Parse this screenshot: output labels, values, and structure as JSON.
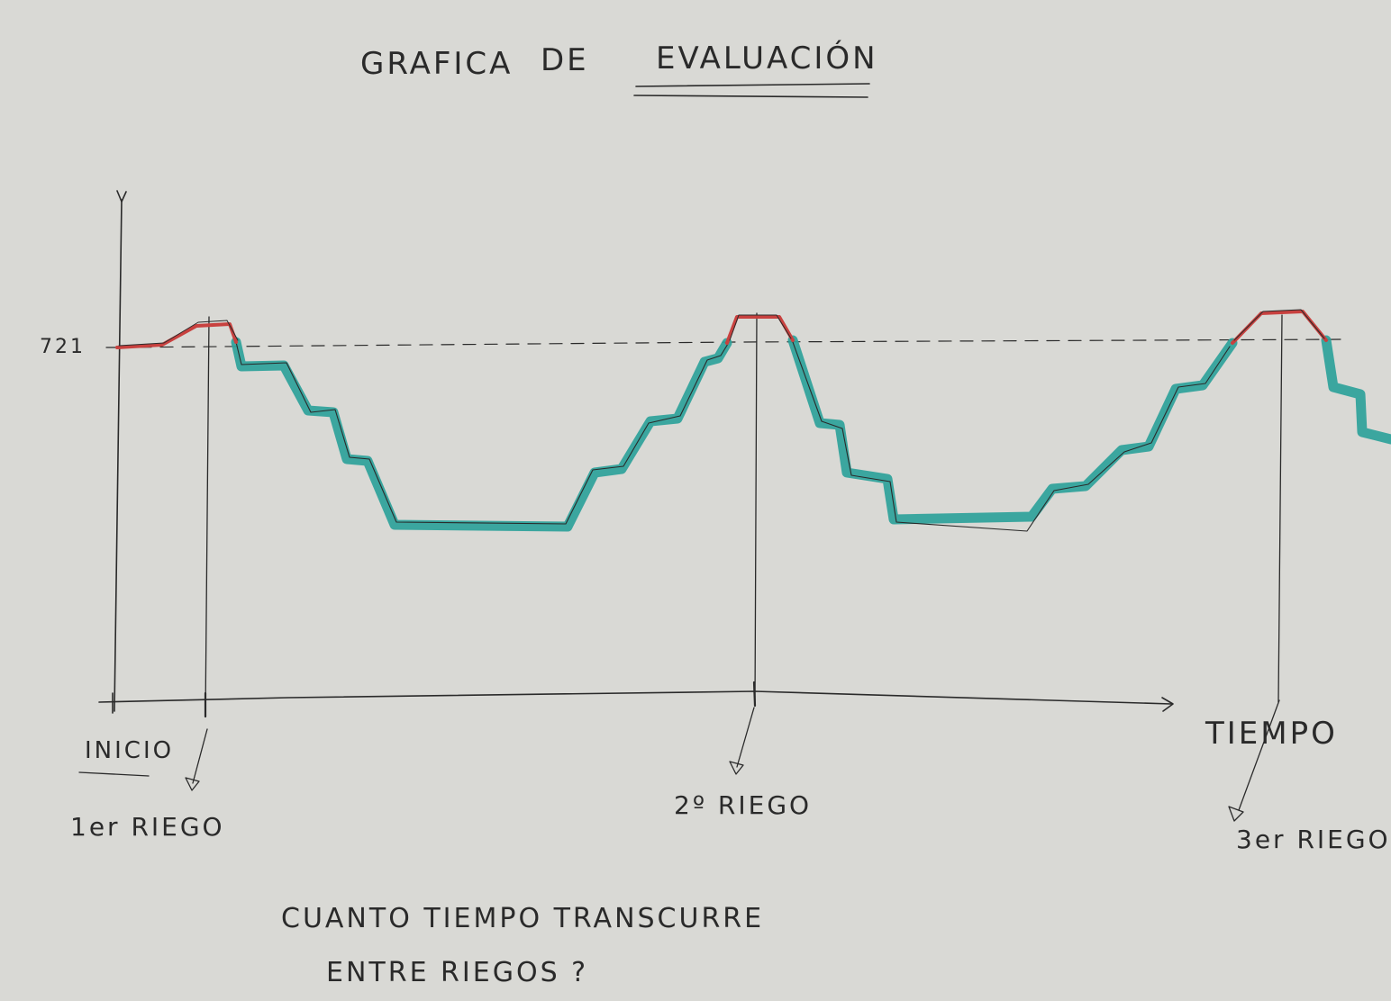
{
  "title": "GRAFICA DE EVALUACIÓN",
  "title_part1": "GRAFICA",
  "title_part2": "DE",
  "title_part3": "EVALUACIÓN",
  "y_tick_label": "721",
  "x_axis_label": "TIEMPO",
  "start_label": "INICIO",
  "events": [
    {
      "label": "1er RIEGO"
    },
    {
      "label": "2º RIEGO"
    },
    {
      "label": "3er RIEGO"
    }
  ],
  "question_line1": "CUANTO TIEMPO TRANSCURRE",
  "question_line2": "ENTRE RIEGOS ?",
  "colors": {
    "paper": "#d9d9d5",
    "ink": "#2a2a2a",
    "above_threshold": "#c8413f",
    "below_threshold": "#2ea29a"
  }
}
